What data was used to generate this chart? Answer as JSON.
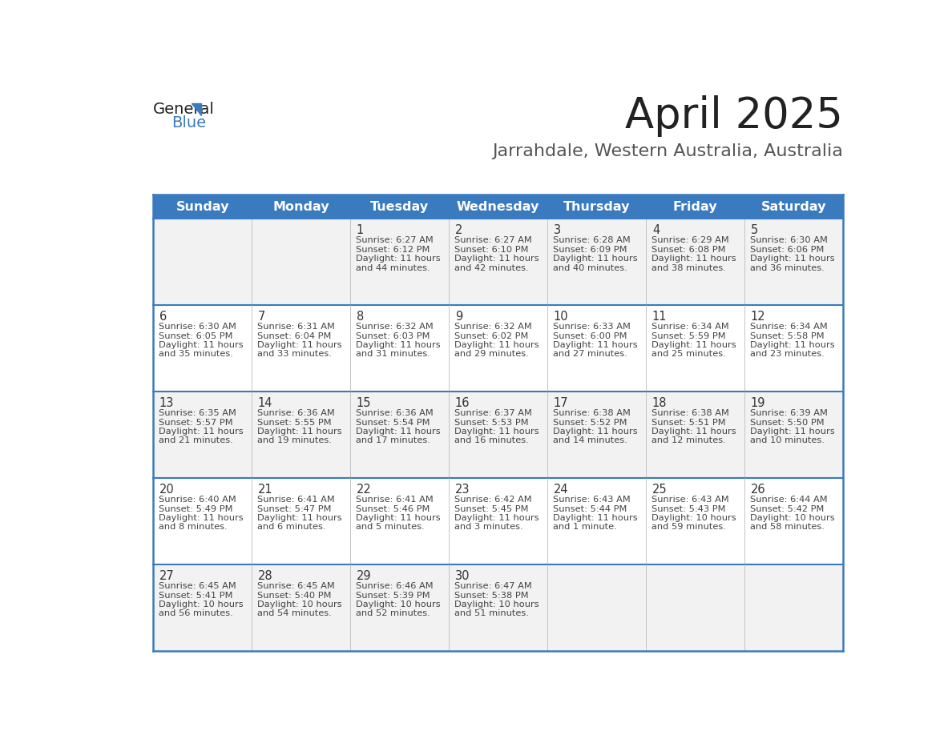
{
  "title": "April 2025",
  "subtitle": "Jarrahdale, Western Australia, Australia",
  "days_of_week": [
    "Sunday",
    "Monday",
    "Tuesday",
    "Wednesday",
    "Thursday",
    "Friday",
    "Saturday"
  ],
  "header_bg": "#3a7abf",
  "header_text": "#ffffff",
  "row_bg_odd": "#f2f2f2",
  "row_bg_even": "#ffffff",
  "separator_color": "#3a7abf",
  "cell_text_color": "#444444",
  "day_num_color": "#333333",
  "title_color": "#222222",
  "subtitle_color": "#555555",
  "logo_general_color": "#222222",
  "logo_blue_color": "#3a7abf",
  "logo_triangle_color": "#3a7abf",
  "grid_line_color": "#bbbbbb",
  "weeks": [
    {
      "days": [
        {
          "date": "",
          "sunrise": "",
          "sunset": "",
          "daylight": ""
        },
        {
          "date": "",
          "sunrise": "",
          "sunset": "",
          "daylight": ""
        },
        {
          "date": "1",
          "sunrise": "6:27 AM",
          "sunset": "6:12 PM",
          "daylight": "11 hours and 44 minutes."
        },
        {
          "date": "2",
          "sunrise": "6:27 AM",
          "sunset": "6:10 PM",
          "daylight": "11 hours and 42 minutes."
        },
        {
          "date": "3",
          "sunrise": "6:28 AM",
          "sunset": "6:09 PM",
          "daylight": "11 hours and 40 minutes."
        },
        {
          "date": "4",
          "sunrise": "6:29 AM",
          "sunset": "6:08 PM",
          "daylight": "11 hours and 38 minutes."
        },
        {
          "date": "5",
          "sunrise": "6:30 AM",
          "sunset": "6:06 PM",
          "daylight": "11 hours and 36 minutes."
        }
      ]
    },
    {
      "days": [
        {
          "date": "6",
          "sunrise": "6:30 AM",
          "sunset": "6:05 PM",
          "daylight": "11 hours and 35 minutes."
        },
        {
          "date": "7",
          "sunrise": "6:31 AM",
          "sunset": "6:04 PM",
          "daylight": "11 hours and 33 minutes."
        },
        {
          "date": "8",
          "sunrise": "6:32 AM",
          "sunset": "6:03 PM",
          "daylight": "11 hours and 31 minutes."
        },
        {
          "date": "9",
          "sunrise": "6:32 AM",
          "sunset": "6:02 PM",
          "daylight": "11 hours and 29 minutes."
        },
        {
          "date": "10",
          "sunrise": "6:33 AM",
          "sunset": "6:00 PM",
          "daylight": "11 hours and 27 minutes."
        },
        {
          "date": "11",
          "sunrise": "6:34 AM",
          "sunset": "5:59 PM",
          "daylight": "11 hours and 25 minutes."
        },
        {
          "date": "12",
          "sunrise": "6:34 AM",
          "sunset": "5:58 PM",
          "daylight": "11 hours and 23 minutes."
        }
      ]
    },
    {
      "days": [
        {
          "date": "13",
          "sunrise": "6:35 AM",
          "sunset": "5:57 PM",
          "daylight": "11 hours and 21 minutes."
        },
        {
          "date": "14",
          "sunrise": "6:36 AM",
          "sunset": "5:55 PM",
          "daylight": "11 hours and 19 minutes."
        },
        {
          "date": "15",
          "sunrise": "6:36 AM",
          "sunset": "5:54 PM",
          "daylight": "11 hours and 17 minutes."
        },
        {
          "date": "16",
          "sunrise": "6:37 AM",
          "sunset": "5:53 PM",
          "daylight": "11 hours and 16 minutes."
        },
        {
          "date": "17",
          "sunrise": "6:38 AM",
          "sunset": "5:52 PM",
          "daylight": "11 hours and 14 minutes."
        },
        {
          "date": "18",
          "sunrise": "6:38 AM",
          "sunset": "5:51 PM",
          "daylight": "11 hours and 12 minutes."
        },
        {
          "date": "19",
          "sunrise": "6:39 AM",
          "sunset": "5:50 PM",
          "daylight": "11 hours and 10 minutes."
        }
      ]
    },
    {
      "days": [
        {
          "date": "20",
          "sunrise": "6:40 AM",
          "sunset": "5:49 PM",
          "daylight": "11 hours and 8 minutes."
        },
        {
          "date": "21",
          "sunrise": "6:41 AM",
          "sunset": "5:47 PM",
          "daylight": "11 hours and 6 minutes."
        },
        {
          "date": "22",
          "sunrise": "6:41 AM",
          "sunset": "5:46 PM",
          "daylight": "11 hours and 5 minutes."
        },
        {
          "date": "23",
          "sunrise": "6:42 AM",
          "sunset": "5:45 PM",
          "daylight": "11 hours and 3 minutes."
        },
        {
          "date": "24",
          "sunrise": "6:43 AM",
          "sunset": "5:44 PM",
          "daylight": "11 hours and 1 minute."
        },
        {
          "date": "25",
          "sunrise": "6:43 AM",
          "sunset": "5:43 PM",
          "daylight": "10 hours and 59 minutes."
        },
        {
          "date": "26",
          "sunrise": "6:44 AM",
          "sunset": "5:42 PM",
          "daylight": "10 hours and 58 minutes."
        }
      ]
    },
    {
      "days": [
        {
          "date": "27",
          "sunrise": "6:45 AM",
          "sunset": "5:41 PM",
          "daylight": "10 hours and 56 minutes."
        },
        {
          "date": "28",
          "sunrise": "6:45 AM",
          "sunset": "5:40 PM",
          "daylight": "10 hours and 54 minutes."
        },
        {
          "date": "29",
          "sunrise": "6:46 AM",
          "sunset": "5:39 PM",
          "daylight": "10 hours and 52 minutes."
        },
        {
          "date": "30",
          "sunrise": "6:47 AM",
          "sunset": "5:38 PM",
          "daylight": "10 hours and 51 minutes."
        },
        {
          "date": "",
          "sunrise": "",
          "sunset": "",
          "daylight": ""
        },
        {
          "date": "",
          "sunrise": "",
          "sunset": "",
          "daylight": ""
        },
        {
          "date": "",
          "sunrise": "",
          "sunset": "",
          "daylight": ""
        }
      ]
    }
  ]
}
